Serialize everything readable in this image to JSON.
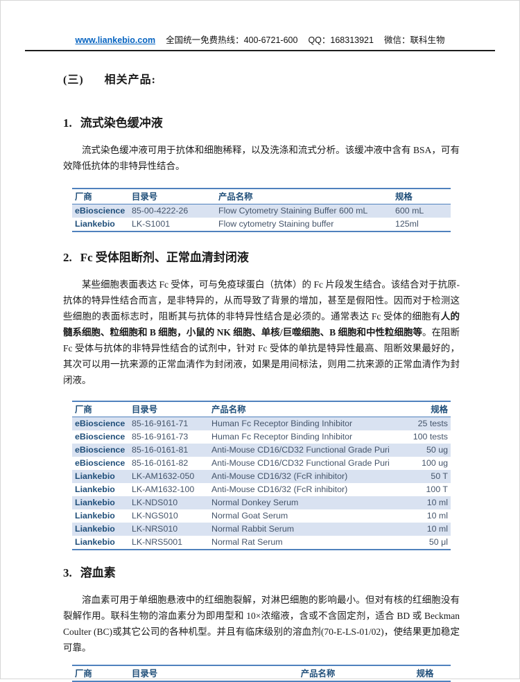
{
  "colors": {
    "accent_border": "#4F81BD",
    "band_fill": "#D9E2F1",
    "table_header_text": "#1F4E79",
    "table_cell_text": "#44546A",
    "link_blue": "#0563C1"
  },
  "header": {
    "link": "www.liankebio.com",
    "hotline": "全国统一免费热线：400-6721-600",
    "qq": "QQ：168313921",
    "wechat": "微信：联科生物"
  },
  "main_heading": {
    "number": "(三)",
    "text": "相关产品:"
  },
  "sections": {
    "s1": {
      "number": "1.",
      "title": "流式染色缓冲液",
      "paragraph": "流式染色缓冲液可用于抗体和细胞稀释，以及洗涤和流式分析。该缓冲液中含有 BSA，可有效降低抗体的非特异性结合。",
      "table": {
        "headers": [
          "厂商",
          "目录号",
          "产品名称",
          "规格"
        ],
        "rows": [
          [
            "eBioscience",
            "85-00-4222-26",
            "Flow Cytometry Staining Buffer 600 mL",
            "600 mL"
          ],
          [
            "Liankebio",
            "LK-S1001",
            "Flow cytometry Staining buffer",
            "125ml"
          ]
        ]
      }
    },
    "s2": {
      "number": "2.",
      "title": "Fc 受体阻断剂、正常血清封闭液",
      "paragraph_pre": "某些细胞表面表达 Fc 受体，可与免疫球蛋白（抗体）的 Fc 片段发生结合。该结合对于抗原-抗体的特异性结合而言，是非特异的，从而导致了背景的增加，甚至是假阳性。因而对于检测这些细胞的表面标志时，阻断其与抗体的非特异性结合是必须的。通常表达 Fc 受体的细胞有",
      "paragraph_bold": "人的髓系细胞、粒细胞和 B 细胞，小鼠的 NK 细胞、单核/巨噬细胞、B 细胞和中性粒细胞等",
      "paragraph_post": "。在阻断 Fc 受体与抗体的非特异性结合的试剂中，针对 Fc 受体的单抗是特异性最高、阻断效果最好的，其次可以用一抗来源的正常血清作为封闭液，如果是用间标法，则用二抗来源的正常血清作为封闭液。",
      "table": {
        "headers": [
          "厂商",
          "目录号",
          "产品名称",
          "规格"
        ],
        "rows": [
          [
            "eBioscience",
            "85-16-9161-71",
            "Human Fc Receptor Binding Inhibitor",
            "25 tests"
          ],
          [
            "eBioscience",
            "85-16-9161-73",
            "Human Fc Receptor Binding Inhibitor",
            "100 tests"
          ],
          [
            "eBioscience",
            "85-16-0161-81",
            "Anti-Mouse CD16/CD32 Functional Grade Purified",
            "50 ug"
          ],
          [
            "eBioscience",
            "85-16-0161-82",
            "Anti-Mouse CD16/CD32 Functional Grade Purified",
            "100 ug"
          ],
          [
            "Liankebio",
            "LK-AM1632-050",
            "Anti-Mouse CD16/32 (FcR inhibitor)",
            "50 T"
          ],
          [
            "Liankebio",
            "LK-AM1632-100",
            "Anti-Mouse CD16/32 (FcR inhibitor)",
            "100 T"
          ],
          [
            "Liankebio",
            "LK-NDS010",
            "Normal Donkey Serum",
            "10 ml"
          ],
          [
            "Liankebio",
            "LK-NGS010",
            "Normal Goat Serum",
            "10 ml"
          ],
          [
            "Liankebio",
            "LK-NRS010",
            "Normal Rabbit Serum",
            "10 ml"
          ],
          [
            "Liankebio",
            "LK-NRS5001",
            "Normal Rat Serum",
            "50 μl"
          ]
        ]
      }
    },
    "s3": {
      "number": "3.",
      "title": "溶血素",
      "paragraph": "溶血素可用于单细胞悬液中的红细胞裂解，对淋巴细胞的影响最小。但对有核的红细胞没有裂解作用。联科生物的溶血素分为即用型和 10×浓缩液，含或不含固定剂，适合 BD 或 Beckman Coulter (BC)或其它公司的各种机型。并且有临床级别的溶血剂(70-E-LS-01/02)，使结果更加稳定可靠。",
      "table": {
        "headers": [
          "厂商",
          "目录号",
          "产品名称",
          "规格"
        ],
        "rows": []
      }
    }
  }
}
